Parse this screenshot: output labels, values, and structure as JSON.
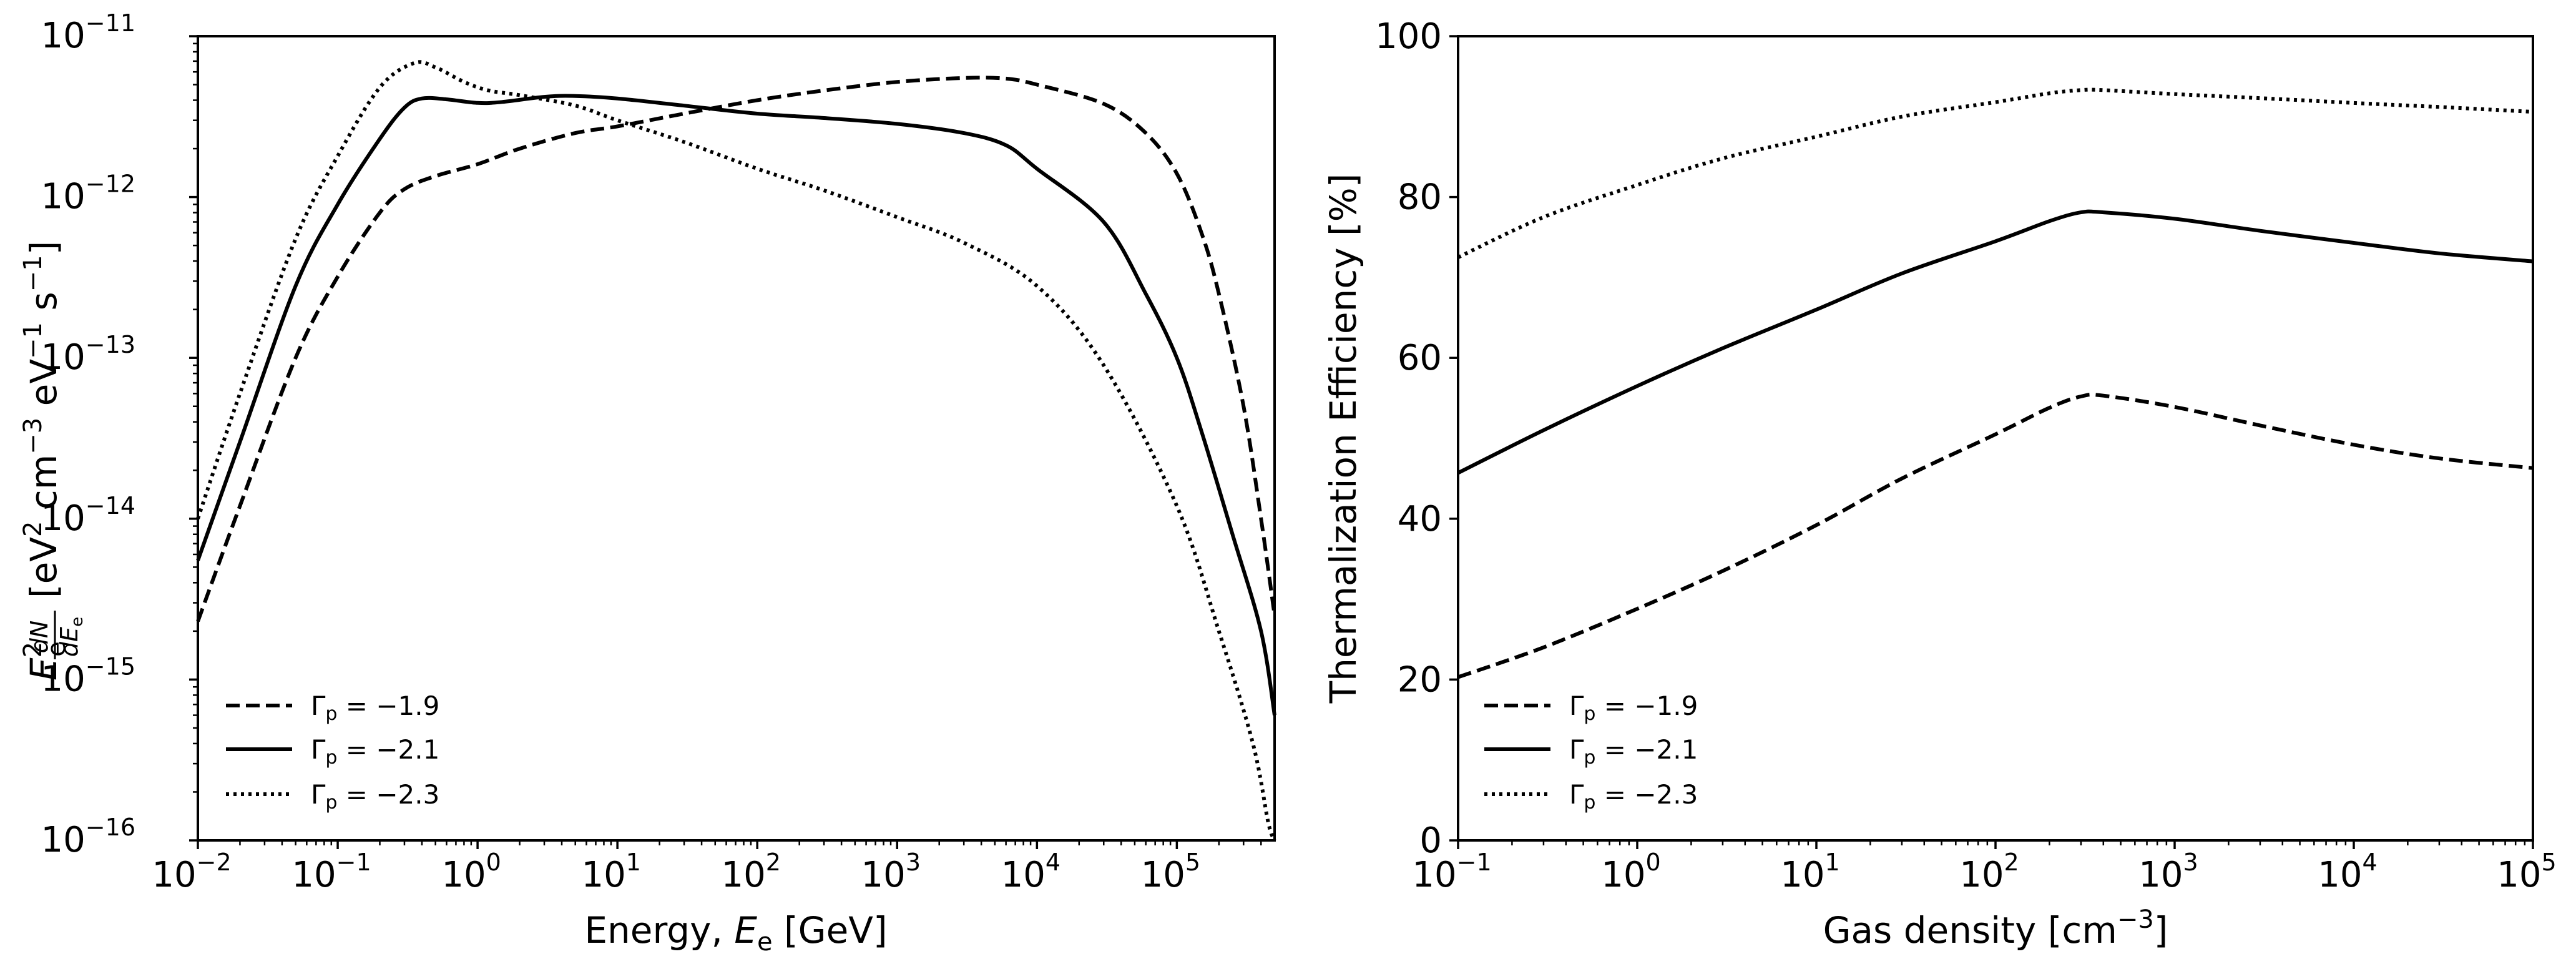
{
  "chart_data": [
    {
      "type": "line",
      "xscale": "log",
      "yscale": "log",
      "xlim": [
        0.01,
        500000
      ],
      "ylim": [
        1e-16,
        1e-11
      ],
      "xlabel_parts": [
        "Energy, ",
        "E",
        "e",
        " [GeV]"
      ],
      "ylabel_parts": [
        "E",
        "2",
        "e",
        "dN",
        "dE",
        "e",
        "[eV",
        "2",
        " cm",
        "−3",
        " eV",
        "−1",
        " s",
        "−1",
        "]"
      ],
      "x_ticks": [
        {
          "value": 0.01,
          "base": "10",
          "exp": "−2"
        },
        {
          "value": 0.1,
          "base": "10",
          "exp": "−1"
        },
        {
          "value": 1,
          "base": "10",
          "exp": "0"
        },
        {
          "value": 10,
          "base": "10",
          "exp": "1"
        },
        {
          "value": 100,
          "base": "10",
          "exp": "2"
        },
        {
          "value": 1000,
          "base": "10",
          "exp": "3"
        },
        {
          "value": 10000,
          "base": "10",
          "exp": "4"
        },
        {
          "value": 100000,
          "base": "10",
          "exp": "5"
        }
      ],
      "y_ticks": [
        {
          "value": 1e-16,
          "base": "10",
          "exp": "−16"
        },
        {
          "value": 1e-15,
          "base": "10",
          "exp": "−15"
        },
        {
          "value": 1e-14,
          "base": "10",
          "exp": "−14"
        },
        {
          "value": 1e-13,
          "base": "10",
          "exp": "−13"
        },
        {
          "value": 1e-12,
          "base": "10",
          "exp": "−12"
        },
        {
          "value": 1e-11,
          "base": "10",
          "exp": "−11"
        }
      ],
      "legend_position": "lower-left",
      "series": [
        {
          "name": "Γp = −1.9",
          "label_parts": [
            "Γ",
            "p",
            " = −1.9"
          ],
          "style": "dashed",
          "points": [
            [
              0.01,
              2.3e-15
            ],
            [
              0.02,
              1.2e-14
            ],
            [
              0.05,
              1e-13
            ],
            [
              0.1,
              3.2e-13
            ],
            [
              0.2,
              8e-13
            ],
            [
              0.3,
              1.12e-12
            ],
            [
              0.5,
              1.35e-12
            ],
            [
              1,
              1.6e-12
            ],
            [
              2,
              2e-12
            ],
            [
              5,
              2.5e-12
            ],
            [
              10,
              2.75e-12
            ],
            [
              30,
              3.3e-12
            ],
            [
              100,
              4e-12
            ],
            [
              300,
              4.6e-12
            ],
            [
              1000,
              5.2e-12
            ],
            [
              3000,
              5.5e-12
            ],
            [
              6000,
              5.45e-12
            ],
            [
              10000,
              5e-12
            ],
            [
              30000,
              3.8e-12
            ],
            [
              60000,
              2.5e-12
            ],
            [
              100000,
              1.4e-12
            ],
            [
              150000,
              6e-13
            ],
            [
              200000,
              2.5e-13
            ],
            [
              300000,
              5e-14
            ],
            [
              400000,
              1e-14
            ],
            [
              500000,
              2.5e-15
            ]
          ]
        },
        {
          "name": "Γp = −2.1",
          "label_parts": [
            "Γ",
            "p",
            " = −2.1"
          ],
          "style": "solid",
          "points": [
            [
              0.01,
              5.5e-15
            ],
            [
              0.02,
              3e-14
            ],
            [
              0.05,
              2.8e-13
            ],
            [
              0.1,
              9e-13
            ],
            [
              0.2,
              2.3e-12
            ],
            [
              0.3,
              3.6e-12
            ],
            [
              0.4,
              4.1e-12
            ],
            [
              0.6,
              4.05e-12
            ],
            [
              1,
              3.85e-12
            ],
            [
              1.5,
              3.9e-12
            ],
            [
              3,
              4.2e-12
            ],
            [
              5,
              4.25e-12
            ],
            [
              10,
              4.1e-12
            ],
            [
              30,
              3.7e-12
            ],
            [
              100,
              3.3e-12
            ],
            [
              300,
              3.1e-12
            ],
            [
              1000,
              2.85e-12
            ],
            [
              3000,
              2.5e-12
            ],
            [
              6000,
              2.1e-12
            ],
            [
              10000,
              1.5e-12
            ],
            [
              30000,
              7e-13
            ],
            [
              60000,
              2.5e-13
            ],
            [
              100000,
              1e-13
            ],
            [
              150000,
              3.5e-14
            ],
            [
              250000,
              8e-15
            ],
            [
              400000,
              2e-15
            ],
            [
              500000,
              6e-16
            ]
          ]
        },
        {
          "name": "Γp = −2.3",
          "label_parts": [
            "Γ",
            "p",
            " = −2.3"
          ],
          "style": "dotted",
          "points": [
            [
              0.01,
              1e-14
            ],
            [
              0.02,
              6e-14
            ],
            [
              0.05,
              5.5e-13
            ],
            [
              0.1,
              1.8e-12
            ],
            [
              0.2,
              4.8e-12
            ],
            [
              0.35,
              6.8e-12
            ],
            [
              0.5,
              6.4e-12
            ],
            [
              0.8,
              5.2e-12
            ],
            [
              1.2,
              4.6e-12
            ],
            [
              2,
              4.3e-12
            ],
            [
              5,
              3.7e-12
            ],
            [
              10,
              3e-12
            ],
            [
              30,
              2.2e-12
            ],
            [
              100,
              1.5e-12
            ],
            [
              300,
              1.1e-12
            ],
            [
              1000,
              7.5e-13
            ],
            [
              3000,
              5.2e-13
            ],
            [
              10000,
              2.8e-13
            ],
            [
              30000,
              9e-14
            ],
            [
              100000,
              1.2e-14
            ],
            [
              200000,
              2e-15
            ],
            [
              350000,
              4e-16
            ],
            [
              450000,
              1.3e-16
            ],
            [
              500000,
              1e-16
            ]
          ]
        }
      ]
    },
    {
      "type": "line",
      "xscale": "log",
      "yscale": "linear",
      "xlim": [
        0.1,
        100000
      ],
      "ylim": [
        0,
        100
      ],
      "xlabel_parts": [
        "Gas density [cm",
        "−3",
        "]"
      ],
      "ylabel": "Thermalization Efficiency [%]",
      "x_ticks": [
        {
          "value": 0.1,
          "base": "10",
          "exp": "−1"
        },
        {
          "value": 1,
          "base": "10",
          "exp": "0"
        },
        {
          "value": 10,
          "base": "10",
          "exp": "1"
        },
        {
          "value": 100,
          "base": "10",
          "exp": "2"
        },
        {
          "value": 1000,
          "base": "10",
          "exp": "3"
        },
        {
          "value": 10000,
          "base": "10",
          "exp": "4"
        },
        {
          "value": 100000,
          "base": "10",
          "exp": "5"
        }
      ],
      "y_ticks": [
        {
          "value": 0,
          "label": "0"
        },
        {
          "value": 20,
          "label": "20"
        },
        {
          "value": 40,
          "label": "40"
        },
        {
          "value": 60,
          "label": "60"
        },
        {
          "value": 80,
          "label": "80"
        },
        {
          "value": 100,
          "label": "100"
        }
      ],
      "legend_position": "lower-left",
      "series": [
        {
          "name": "Γp = −1.9",
          "label_parts": [
            "Γ",
            "p",
            " = −1.9"
          ],
          "style": "dashed",
          "points": [
            [
              0.1,
              20.3
            ],
            [
              0.3,
              24.0
            ],
            [
              1,
              28.8
            ],
            [
              3,
              33.5
            ],
            [
              10,
              39.2
            ],
            [
              30,
              45.0
            ],
            [
              100,
              50.5
            ],
            [
              200,
              53.8
            ],
            [
              300,
              55.2
            ],
            [
              400,
              55.3
            ],
            [
              1000,
              53.9
            ],
            [
              3000,
              51.6
            ],
            [
              10000,
              49.2
            ],
            [
              30000,
              47.5
            ],
            [
              100000,
              46.3
            ]
          ]
        },
        {
          "name": "Γp = −2.1",
          "label_parts": [
            "Γ",
            "p",
            " = −2.1"
          ],
          "style": "solid",
          "points": [
            [
              0.1,
              45.7
            ],
            [
              0.3,
              51.0
            ],
            [
              1,
              56.5
            ],
            [
              3,
              61.2
            ],
            [
              10,
              66.0
            ],
            [
              30,
              70.5
            ],
            [
              100,
              74.5
            ],
            [
              200,
              77.0
            ],
            [
              300,
              78.1
            ],
            [
              400,
              78.1
            ],
            [
              1000,
              77.3
            ],
            [
              3000,
              75.8
            ],
            [
              10000,
              74.3
            ],
            [
              30000,
              73.0
            ],
            [
              100000,
              72.0
            ]
          ]
        },
        {
          "name": "Γp = −2.3",
          "label_parts": [
            "Γ",
            "p",
            " = −2.3"
          ],
          "style": "dotted",
          "points": [
            [
              0.1,
              72.5
            ],
            [
              0.3,
              77.5
            ],
            [
              1,
              81.5
            ],
            [
              3,
              84.8
            ],
            [
              10,
              87.5
            ],
            [
              30,
              90.0
            ],
            [
              100,
              91.8
            ],
            [
              200,
              92.9
            ],
            [
              300,
              93.3
            ],
            [
              400,
              93.3
            ],
            [
              1000,
              92.8
            ],
            [
              3000,
              92.3
            ],
            [
              10000,
              91.7
            ],
            [
              30000,
              91.2
            ],
            [
              100000,
              90.6
            ]
          ]
        }
      ]
    }
  ]
}
